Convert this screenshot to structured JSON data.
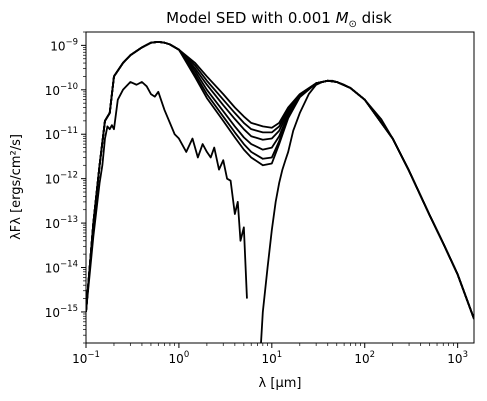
{
  "chart_data": {
    "type": "line",
    "title": "Model SED with 0.001 M⊙ disk",
    "title_parts": {
      "prefix": "Model SED with 0.001 ",
      "symbol": "M",
      "subscript": "⊙",
      "suffix": " disk"
    },
    "xlabel": "λ [μm]",
    "ylabel": "λFλ [ergs/cm²/s]",
    "xscale": "log",
    "yscale": "log",
    "xlim": [
      0.1,
      1500
    ],
    "ylim": [
      2e-16,
      2e-09
    ],
    "grid": false,
    "legend": "none",
    "line_color": "#000000",
    "x_ticks": [
      {
        "value": 0.1,
        "base": "10",
        "exp": "−1"
      },
      {
        "value": 1,
        "base": "10",
        "exp": "0"
      },
      {
        "value": 10,
        "base": "10",
        "exp": "1"
      },
      {
        "value": 100,
        "base": "10",
        "exp": "2"
      },
      {
        "value": 1000,
        "base": "10",
        "exp": "3"
      }
    ],
    "y_ticks": [
      {
        "value": 1e-15,
        "base": "10",
        "exp": "−15"
      },
      {
        "value": 1e-14,
        "base": "10",
        "exp": "−14"
      },
      {
        "value": 1e-13,
        "base": "10",
        "exp": "−13"
      },
      {
        "value": 1e-12,
        "base": "10",
        "exp": "−12"
      },
      {
        "value": 1e-11,
        "base": "10",
        "exp": "−11"
      },
      {
        "value": 1e-10,
        "base": "10",
        "exp": "−10"
      },
      {
        "value": 1e-09,
        "base": "10",
        "exp": "−9"
      }
    ],
    "series": [
      {
        "x": [
          0.1,
          0.12,
          0.14,
          0.16,
          0.18,
          0.2,
          0.25,
          0.3,
          0.4,
          0.5,
          0.6,
          0.7,
          0.8,
          1.0,
          1.5,
          2.0,
          3.0,
          4.0,
          5.0,
          6.0,
          8.0,
          10.0,
          12.0,
          15.0,
          20.0,
          30.0,
          40.0,
          50.0,
          70.0,
          100.0,
          200.0,
          300.0,
          500.0,
          700.0,
          1000.0,
          1500.0
        ],
        "y": [
          1e-15,
          1e-13,
          2e-12,
          2e-11,
          3e-11,
          2e-10,
          4e-10,
          6e-10,
          9e-10,
          1.15e-09,
          1.2e-09,
          1.15e-09,
          1.05e-09,
          8e-10,
          4e-10,
          2e-10,
          8e-11,
          4e-11,
          2.5e-11,
          1.8e-11,
          1.5e-11,
          1.4e-11,
          1.8e-11,
          4e-11,
          8e-11,
          1.4e-10,
          1.6e-10,
          1.5e-10,
          1.1e-10,
          6e-11,
          8e-12,
          1.5e-12,
          1.5e-13,
          3.5e-14,
          7e-15,
          7e-16
        ]
      },
      {
        "x": [
          0.1,
          0.12,
          0.14,
          0.16,
          0.18,
          0.2,
          0.25,
          0.3,
          0.4,
          0.5,
          0.6,
          0.7,
          0.8,
          1.0,
          1.5,
          2.0,
          3.0,
          4.0,
          5.0,
          6.0,
          8.0,
          10.0,
          12.0,
          15.0,
          20.0,
          30.0,
          40.0,
          50.0,
          70.0,
          100.0,
          200.0,
          300.0,
          500.0,
          700.0,
          1000.0,
          1500.0
        ],
        "y": [
          1e-15,
          1e-13,
          2e-12,
          2e-11,
          3e-11,
          2e-10,
          4e-10,
          6e-10,
          9e-10,
          1.15e-09,
          1.2e-09,
          1.15e-09,
          1.05e-09,
          8e-10,
          3.5e-10,
          1.6e-10,
          6e-11,
          3e-11,
          1.8e-11,
          1.3e-11,
          1.1e-11,
          1.1e-11,
          1.5e-11,
          3.6e-11,
          7.8e-11,
          1.4e-10,
          1.6e-10,
          1.5e-10,
          1.1e-10,
          6e-11,
          8e-12,
          1.5e-12,
          1.5e-13,
          3.5e-14,
          7e-15,
          7e-16
        ]
      },
      {
        "x": [
          0.1,
          0.12,
          0.14,
          0.16,
          0.18,
          0.2,
          0.25,
          0.3,
          0.4,
          0.5,
          0.6,
          0.7,
          0.8,
          1.0,
          1.5,
          2.0,
          3.0,
          4.0,
          5.0,
          6.0,
          8.0,
          10.0,
          12.0,
          15.0,
          20.0,
          30.0,
          40.0,
          50.0,
          70.0,
          100.0,
          200.0,
          300.0,
          500.0,
          700.0,
          1000.0,
          1500.0
        ],
        "y": [
          1e-15,
          1e-13,
          2e-12,
          2e-11,
          3e-11,
          2e-10,
          4e-10,
          6e-10,
          9e-10,
          1.15e-09,
          1.2e-09,
          1.15e-09,
          1.05e-09,
          8e-10,
          3e-10,
          1.3e-10,
          4.5e-11,
          2.2e-11,
          1.3e-11,
          9e-12,
          7.5e-12,
          8e-12,
          1.2e-11,
          3.2e-11,
          7.5e-11,
          1.4e-10,
          1.6e-10,
          1.5e-10,
          1.1e-10,
          6e-11,
          8e-12,
          1.5e-12,
          1.5e-13,
          3.5e-14,
          7e-15,
          7e-16
        ]
      },
      {
        "x": [
          0.1,
          0.12,
          0.14,
          0.16,
          0.18,
          0.2,
          0.25,
          0.3,
          0.4,
          0.5,
          0.6,
          0.7,
          0.8,
          1.0,
          1.5,
          2.0,
          3.0,
          4.0,
          5.0,
          6.0,
          8.0,
          10.0,
          12.0,
          15.0,
          20.0,
          30.0,
          40.0,
          50.0,
          70.0,
          100.0,
          200.0,
          300.0,
          500.0,
          700.0,
          1000.0,
          1500.0
        ],
        "y": [
          1e-15,
          1e-13,
          2e-12,
          2e-11,
          3e-11,
          2e-10,
          4e-10,
          6e-10,
          9e-10,
          1.15e-09,
          1.2e-09,
          1.15e-09,
          1.05e-09,
          8e-10,
          2.6e-10,
          1e-10,
          3.3e-11,
          1.5e-11,
          8.5e-12,
          6e-12,
          4.5e-12,
          5e-12,
          9e-12,
          2.8e-11,
          7.2e-11,
          1.4e-10,
          1.6e-10,
          1.5e-10,
          1.1e-10,
          6e-11,
          8e-12,
          1.5e-12,
          1.5e-13,
          3.5e-14,
          7e-15,
          7e-16
        ]
      },
      {
        "x": [
          0.1,
          0.12,
          0.14,
          0.16,
          0.18,
          0.2,
          0.25,
          0.3,
          0.4,
          0.5,
          0.6,
          0.7,
          0.8,
          1.0,
          1.5,
          2.0,
          3.0,
          4.0,
          5.0,
          6.0,
          8.0,
          10.0,
          12.0,
          15.0,
          20.0,
          30.0,
          40.0,
          50.0,
          70.0,
          100.0,
          200.0,
          300.0,
          500.0,
          700.0,
          1000.0,
          1500.0
        ],
        "y": [
          1e-15,
          1e-13,
          2e-12,
          2e-11,
          3e-11,
          2e-10,
          4e-10,
          6e-10,
          9e-10,
          1.15e-09,
          1.2e-09,
          1.15e-09,
          1.05e-09,
          8e-10,
          2.2e-10,
          8e-11,
          2.5e-11,
          1.1e-11,
          6e-12,
          4e-12,
          2.8e-12,
          3e-12,
          7e-12,
          2.5e-11,
          7e-11,
          1.4e-10,
          1.6e-10,
          1.5e-10,
          1.1e-10,
          6e-11,
          8e-12,
          1.5e-12,
          1.5e-13,
          3.5e-14,
          7e-15,
          7e-16
        ]
      },
      {
        "x": [
          0.1,
          0.12,
          0.14,
          0.16,
          0.18,
          0.2,
          0.25,
          0.3,
          0.4,
          0.5,
          0.6,
          0.7,
          0.8,
          1.0,
          1.5,
          2.0,
          3.0,
          4.0,
          5.0,
          6.0,
          8.0,
          10.0,
          12.0,
          15.0,
          20.0,
          30.0,
          40.0,
          50.0,
          70.0,
          100.0,
          200.0,
          300.0,
          500.0,
          700.0,
          1000.0,
          1500.0
        ],
        "y": [
          1e-15,
          1e-13,
          2e-12,
          2e-11,
          3e-11,
          2e-10,
          4e-10,
          6e-10,
          9e-10,
          1.15e-09,
          1.2e-09,
          1.15e-09,
          1.05e-09,
          8e-10,
          1.9e-10,
          6.5e-11,
          2e-11,
          8.5e-12,
          4.5e-12,
          3e-12,
          2e-12,
          2.2e-12,
          6e-12,
          2.3e-11,
          6.8e-11,
          1.4e-10,
          1.6e-10,
          1.5e-10,
          1.1e-10,
          6e-11,
          8e-12,
          1.5e-12,
          1.5e-13,
          3.5e-14,
          7e-15,
          7e-16
        ]
      },
      {
        "x": [
          0.1,
          0.12,
          0.14,
          0.15,
          0.16,
          0.17,
          0.18,
          0.19,
          0.2,
          0.22,
          0.25,
          0.3,
          0.35,
          0.4,
          0.45,
          0.5,
          0.55,
          0.6,
          0.65,
          0.7,
          0.8,
          0.9,
          1.0,
          1.2,
          1.4,
          1.6,
          1.8,
          2.0,
          2.2,
          2.4,
          2.7,
          3.0,
          3.3,
          3.6,
          4.0,
          4.3,
          4.6,
          5.0,
          5.4
        ],
        "y": [
          1e-15,
          5e-14,
          8e-13,
          2e-12,
          8e-12,
          1.5e-11,
          1.3e-11,
          1.6e-11,
          1.3e-11,
          6e-11,
          1e-10,
          1.5e-10,
          1.3e-10,
          1.5e-10,
          1.2e-10,
          8e-11,
          7e-11,
          9e-11,
          5.5e-11,
          3.5e-11,
          1.8e-11,
          1e-11,
          8e-12,
          4e-12,
          8e-12,
          3e-12,
          6e-12,
          4e-12,
          3e-12,
          5e-12,
          1.6e-12,
          2.6e-12,
          1e-12,
          9e-13,
          1.6e-13,
          3e-13,
          4e-14,
          8e-14,
          2e-15
        ]
      },
      {
        "x": [
          7.5,
          8.0,
          9.0,
          10.0,
          11.0,
          12.0,
          13.0,
          14.0,
          15.0,
          17.0,
          20.0,
          25.0,
          30.0,
          35.0,
          40.0,
          45.0,
          50.0,
          60.0,
          70.0,
          100.0,
          150.0,
          200.0,
          300.0,
          500.0,
          700.0,
          1000.0,
          1500.0
        ],
        "y": [
          1e-16,
          1e-15,
          1e-14,
          7e-14,
          3e-13,
          8e-13,
          1.6e-12,
          2.6e-12,
          4e-12,
          1.2e-11,
          3e-11,
          8e-11,
          1.3e-10,
          1.5e-10,
          1.6e-10,
          1.6e-10,
          1.5e-10,
          1.3e-10,
          1.1e-10,
          6e-11,
          2.2e-11,
          8e-12,
          1.5e-12,
          1.5e-13,
          3.5e-14,
          7e-15,
          7e-16
        ]
      }
    ]
  }
}
